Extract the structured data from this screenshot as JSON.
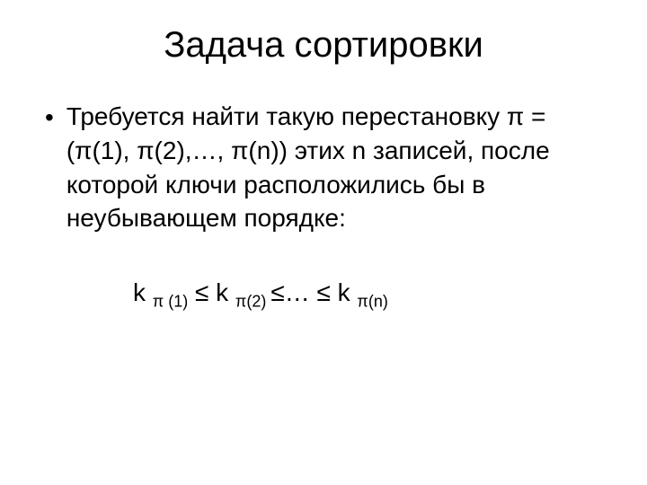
{
  "slide": {
    "title": "Задача сортировки",
    "body_text": "Требуется найти такую перестановку π = (π(1), π(2),…, π(n)) этих n записей, после которой ключи расположились бы в неубывающем порядке:",
    "formula_parts": {
      "k1": "k ",
      "sub1": "π (1)",
      "le1": " ≤ k ",
      "sub2": "π(2) ",
      "le2": "≤… ≤ k ",
      "sub3": "π(n)"
    }
  },
  "style": {
    "background_color": "#ffffff",
    "text_color": "#000000",
    "title_fontsize": 40,
    "body_fontsize": 28,
    "sub_fontsize": 18
  }
}
